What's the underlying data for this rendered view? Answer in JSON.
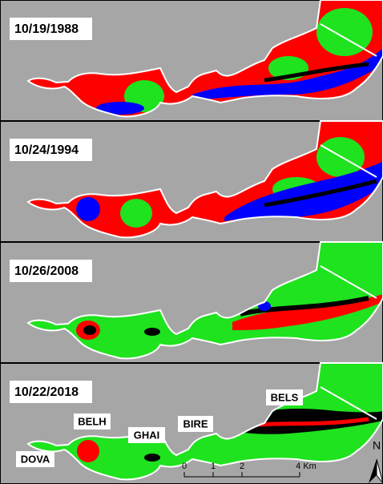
{
  "panels": [
    {
      "date": "10/19/1988"
    },
    {
      "date": "10/24/1994"
    },
    {
      "date": "10/26/2008"
    },
    {
      "date": "10/22/2018"
    }
  ],
  "place_labels": [
    "DOVA",
    "BELH",
    "GHAI",
    "BIRE",
    "BELS"
  ],
  "scale_bar": {
    "labels": [
      "0",
      "1",
      "2",
      "4 Km"
    ]
  },
  "north_arrow": "N"
}
